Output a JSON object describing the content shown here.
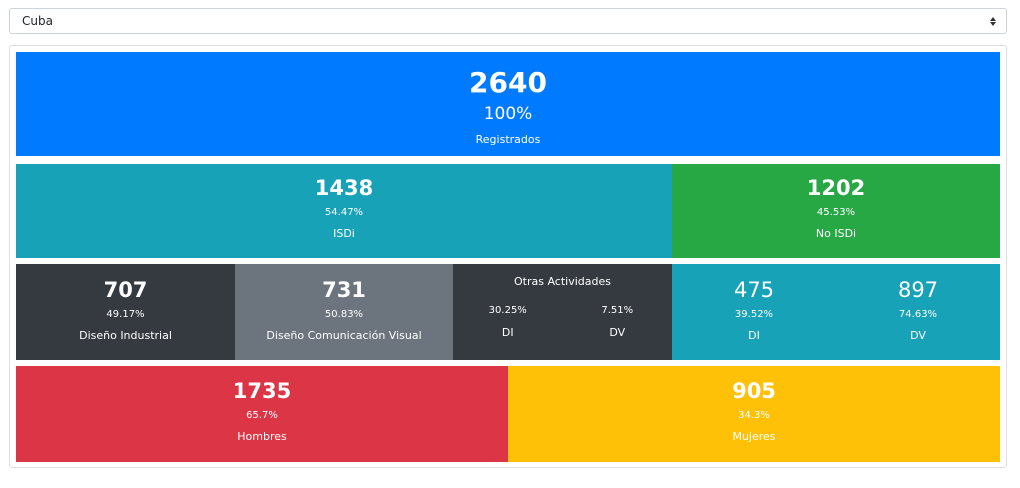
{
  "selector": {
    "value": "Cuba"
  },
  "total": {
    "count": "2640",
    "percent": "100%",
    "label": "Registrados"
  },
  "isdi": {
    "count": "1438",
    "percent": "54.47%",
    "label": "ISDi"
  },
  "no_isdi": {
    "count": "1202",
    "percent": "45.53%",
    "label": "No ISDi"
  },
  "di": {
    "count": "707",
    "percent": "49.17%",
    "label": "Diseño Industrial"
  },
  "dcv": {
    "count": "731",
    "percent": "50.83%",
    "label": "Diseño Comunicación Visual"
  },
  "otras": {
    "title": "Otras Actividades",
    "di_percent": "30.25%",
    "di_label": "DI",
    "dv_percent": "7.51%",
    "dv_label": "DV"
  },
  "no_isdi_split": {
    "di_count": "475",
    "di_percent": "39.52%",
    "di_label": "DI",
    "dv_count": "897",
    "dv_percent": "74.63%",
    "dv_label": "DV"
  },
  "hombres": {
    "count": "1735",
    "percent": "65.7%",
    "label": "Hombres"
  },
  "mujeres": {
    "count": "905",
    "percent": "34.3%",
    "label": "Mujeres"
  }
}
